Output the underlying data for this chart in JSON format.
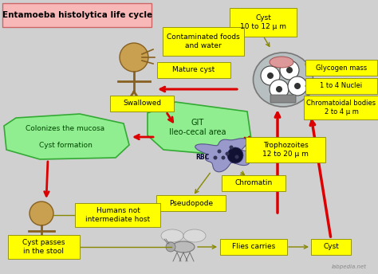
{
  "title": "Entamoeba histolytica life cycle",
  "bg_color": "#d0d0d0",
  "yellow_box_color": "#ffff00",
  "red_arrow_color": "#dd0000",
  "text_color": "#000000",
  "watermark": "labpedia.net",
  "labels": {
    "cyst_top": "Cyst\n10 to 12 μ m",
    "contaminated": "Contaminated foods\nand water",
    "mature_cyst": "Mature cyst",
    "glycogen": "Glycogen mass",
    "nuclei": "1 to 4 Nuclei",
    "chromatoidal": "Chromatoidal bodies\n2 to 4 μ m",
    "swallowed": "Swallowed",
    "git": "GIT\nIleo-cecal area",
    "colonizes": "Colonizes the mucosa\n\nCyst formation",
    "rbc": "RBC",
    "trophozoites": "Trophozoites\n12 to 20 μ m",
    "chromatin": "Chromatin",
    "pseudopode": "Pseudopode",
    "humans_not": "Humans not\nintermediate host",
    "cyst_passes": "Cyst passes\nin the stool",
    "flies_carries": "Flies carries",
    "cyst_bottom": "Cyst"
  }
}
